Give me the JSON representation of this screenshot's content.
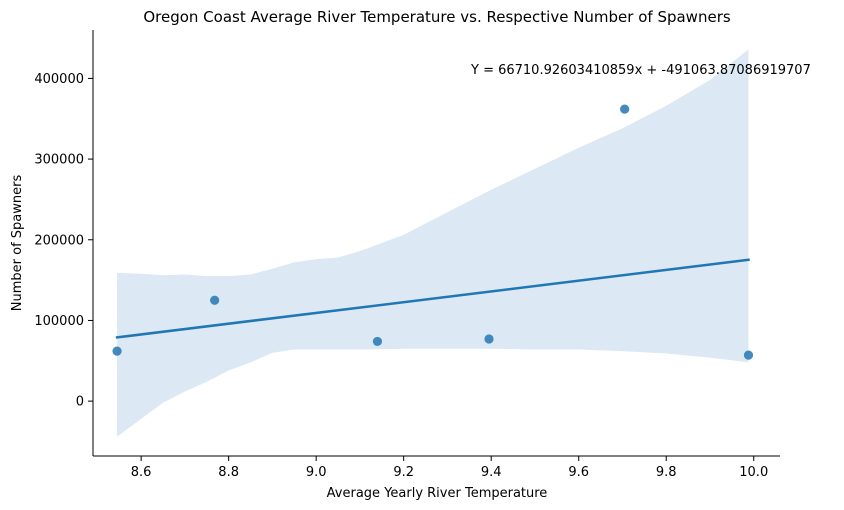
{
  "chart_data": {
    "type": "scatter",
    "title": "Oregon Coast Average River Temperature vs. Respective Number of Spawners",
    "xlabel": "Average Yearly River Temperature",
    "ylabel": "Number of Spawners",
    "xlim": [
      8.49,
      10.06
    ],
    "ylim": [
      -68000,
      460000
    ],
    "x_ticks": [
      "8.6",
      "8.8",
      "9.0",
      "9.2",
      "9.4",
      "9.6",
      "9.8",
      "10.0"
    ],
    "x_tick_values": [
      8.6,
      8.8,
      9.0,
      9.2,
      9.4,
      9.6,
      9.8,
      10.0
    ],
    "y_ticks": [
      "0",
      "100000",
      "200000",
      "300000",
      "400000"
    ],
    "y_tick_values": [
      0,
      100000,
      200000,
      300000,
      400000
    ],
    "points": [
      {
        "x": 8.545,
        "y": 62000
      },
      {
        "x": 8.768,
        "y": 125000
      },
      {
        "x": 9.14,
        "y": 74000
      },
      {
        "x": 9.395,
        "y": 77000
      },
      {
        "x": 9.705,
        "y": 362000
      },
      {
        "x": 9.988,
        "y": 57000
      }
    ],
    "regression": {
      "slope": 66710.92603410859,
      "intercept": -491063.87086919707,
      "x_range": [
        8.545,
        9.988
      ]
    },
    "confidence_band": [
      {
        "x": 8.545,
        "lo": -44000,
        "hi": 159000
      },
      {
        "x": 8.6,
        "lo": -22000,
        "hi": 158000
      },
      {
        "x": 8.65,
        "lo": -2000,
        "hi": 156000
      },
      {
        "x": 8.7,
        "lo": 12000,
        "hi": 157000
      },
      {
        "x": 8.75,
        "lo": 24000,
        "hi": 155000
      },
      {
        "x": 8.8,
        "lo": 38000,
        "hi": 155000
      },
      {
        "x": 8.85,
        "lo": 48000,
        "hi": 157000
      },
      {
        "x": 8.9,
        "lo": 60000,
        "hi": 164000
      },
      {
        "x": 8.95,
        "lo": 64000,
        "hi": 172000
      },
      {
        "x": 9.0,
        "lo": 64000,
        "hi": 176000
      },
      {
        "x": 9.05,
        "lo": 64000,
        "hi": 178000
      },
      {
        "x": 9.1,
        "lo": 64000,
        "hi": 186000
      },
      {
        "x": 9.15,
        "lo": 64500,
        "hi": 196000
      },
      {
        "x": 9.2,
        "lo": 65000,
        "hi": 206000
      },
      {
        "x": 9.3,
        "lo": 65000,
        "hi": 234000
      },
      {
        "x": 9.4,
        "lo": 65000,
        "hi": 262000
      },
      {
        "x": 9.5,
        "lo": 64000,
        "hi": 288000
      },
      {
        "x": 9.6,
        "lo": 64000,
        "hi": 314000
      },
      {
        "x": 9.7,
        "lo": 62000,
        "hi": 338000
      },
      {
        "x": 9.8,
        "lo": 59000,
        "hi": 366000
      },
      {
        "x": 9.9,
        "lo": 54000,
        "hi": 398000
      },
      {
        "x": 9.988,
        "lo": 48000,
        "hi": 436000
      }
    ],
    "annotation": "Y = 66710.92603410859x + -491063.87086919707",
    "colors": {
      "points": "#2f7db6",
      "line": "#1f77b4",
      "band": "#dce8f3"
    },
    "grid": false,
    "legend": "none"
  }
}
